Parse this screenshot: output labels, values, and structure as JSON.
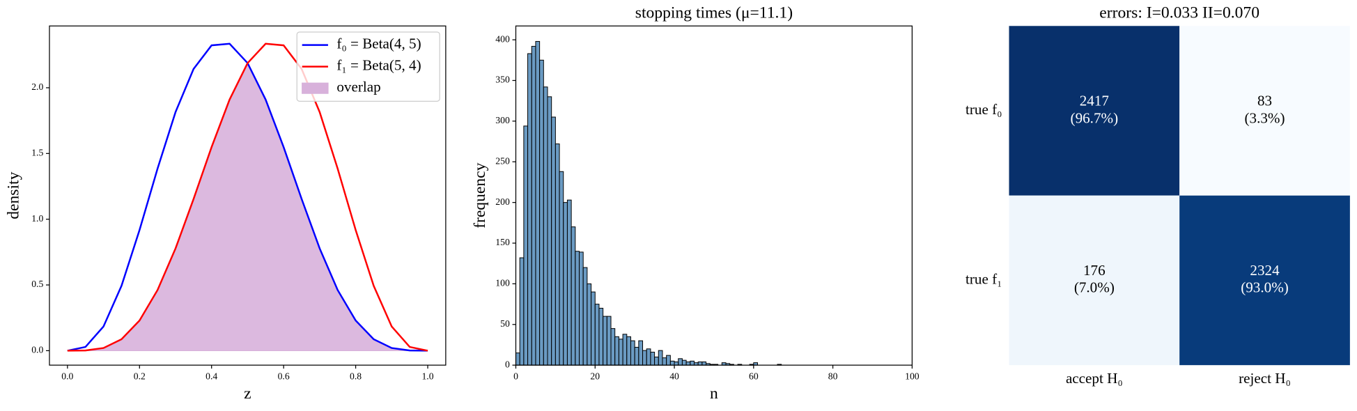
{
  "chart_data": [
    {
      "type": "line",
      "xlabel": "z",
      "ylabel": "density",
      "x": [
        0,
        0.05,
        0.1,
        0.15,
        0.2,
        0.25,
        0.3,
        0.35,
        0.4,
        0.45,
        0.5,
        0.55,
        0.6,
        0.65,
        0.7,
        0.75,
        0.8,
        0.85,
        0.9,
        0.95,
        1
      ],
      "series": [
        {
          "name": "f₀ = Beta(4, 5)",
          "color": "#0000ff",
          "values": [
            0,
            0.0285,
            0.1837,
            0.4933,
            0.9175,
            1.3843,
            1.8152,
            2.143,
            2.3224,
            2.3348,
            2.1875,
            1.9103,
            1.5483,
            1.1539,
            0.7779,
            0.4614,
            0.2294,
            0.0871,
            0.0204,
            0.0015,
            0
          ]
        },
        {
          "name": "f₁ = Beta(5, 4)",
          "color": "#ff0000",
          "values": [
            0,
            0.0015,
            0.0204,
            0.0871,
            0.2294,
            0.4614,
            0.7779,
            1.1539,
            1.5483,
            1.9103,
            2.1875,
            2.3348,
            2.3224,
            2.143,
            1.8152,
            1.3843,
            0.9175,
            0.4933,
            0.1837,
            0.0285,
            0
          ]
        },
        {
          "name": "overlap",
          "color": "#d8b1db",
          "kind": "area",
          "values": [
            0,
            0.0015,
            0.0204,
            0.0871,
            0.2294,
            0.4614,
            0.7779,
            1.1539,
            1.5483,
            1.9103,
            2.1875,
            1.9103,
            1.5483,
            1.1539,
            0.7779,
            0.4614,
            0.2294,
            0.0871,
            0.0204,
            0.0015,
            0
          ]
        }
      ],
      "xlim": [
        -0.05,
        1.05
      ],
      "ylim": [
        -0.11,
        2.47
      ],
      "xticks": [
        {
          "value": 0,
          "label": "0.0"
        },
        {
          "value": 0.2,
          "label": "0.2"
        },
        {
          "value": 0.4,
          "label": "0.4"
        },
        {
          "value": 0.6,
          "label": "0.6"
        },
        {
          "value": 0.8,
          "label": "0.8"
        },
        {
          "value": 1,
          "label": "1.0"
        }
      ],
      "yticks": [
        {
          "value": 0,
          "label": "0.0"
        },
        {
          "value": 0.5,
          "label": "0.5"
        },
        {
          "value": 1,
          "label": "1.0"
        },
        {
          "value": 1.5,
          "label": "1.5"
        },
        {
          "value": 2,
          "label": "2.0"
        }
      ],
      "legend": "upper right"
    },
    {
      "type": "histogram",
      "title": "stopping times (μ=11.1)",
      "xlabel": "n",
      "ylabel": "frequency",
      "color": "#4682b4",
      "bins": [
        0,
        1,
        2,
        3,
        4,
        5,
        6,
        7,
        8,
        9,
        10,
        11,
        12,
        13,
        14,
        15,
        16,
        17,
        18,
        19,
        20,
        21,
        22,
        23,
        24,
        25,
        26,
        27,
        28,
        29,
        30,
        31,
        32,
        33,
        34,
        35,
        36,
        37,
        38,
        39,
        40,
        41,
        42,
        43,
        44,
        45,
        46,
        47,
        48,
        49,
        50,
        51,
        52,
        53,
        54,
        55,
        56,
        57,
        58,
        59,
        60,
        61,
        62,
        63,
        64,
        65,
        66,
        67
      ],
      "values": [
        15,
        132,
        294,
        383,
        392,
        398,
        375,
        342,
        330,
        305,
        272,
        238,
        200,
        203,
        170,
        140,
        139,
        120,
        100,
        90,
        75,
        70,
        60,
        60,
        45,
        35,
        32,
        38,
        35,
        30,
        22,
        30,
        18,
        20,
        16,
        10,
        18,
        9,
        12,
        5,
        4,
        8,
        6,
        4,
        5,
        3,
        4,
        4,
        2,
        1,
        1,
        0,
        3,
        2,
        1,
        0,
        1,
        0,
        0,
        1,
        3,
        0,
        0,
        0,
        0,
        0,
        1
      ],
      "xlim": [
        0,
        100
      ],
      "ylim": [
        0,
        417
      ],
      "xticks": [
        0,
        20,
        40,
        60,
        80,
        100
      ],
      "yticks": [
        0,
        50,
        100,
        150,
        200,
        250,
        300,
        350,
        400
      ]
    },
    {
      "type": "heatmap",
      "title": "errors: I=0.033 II=0.070",
      "rows": [
        "true f₀",
        "true f₁"
      ],
      "columns": [
        "accept H₀",
        "reject H₀"
      ],
      "values": [
        [
          2417,
          83
        ],
        [
          176,
          2324
        ]
      ],
      "percent_labels": [
        [
          "(96.7%)",
          "(3.3%)"
        ],
        [
          "(7.0%)",
          "(93.0%)"
        ]
      ]
    }
  ]
}
